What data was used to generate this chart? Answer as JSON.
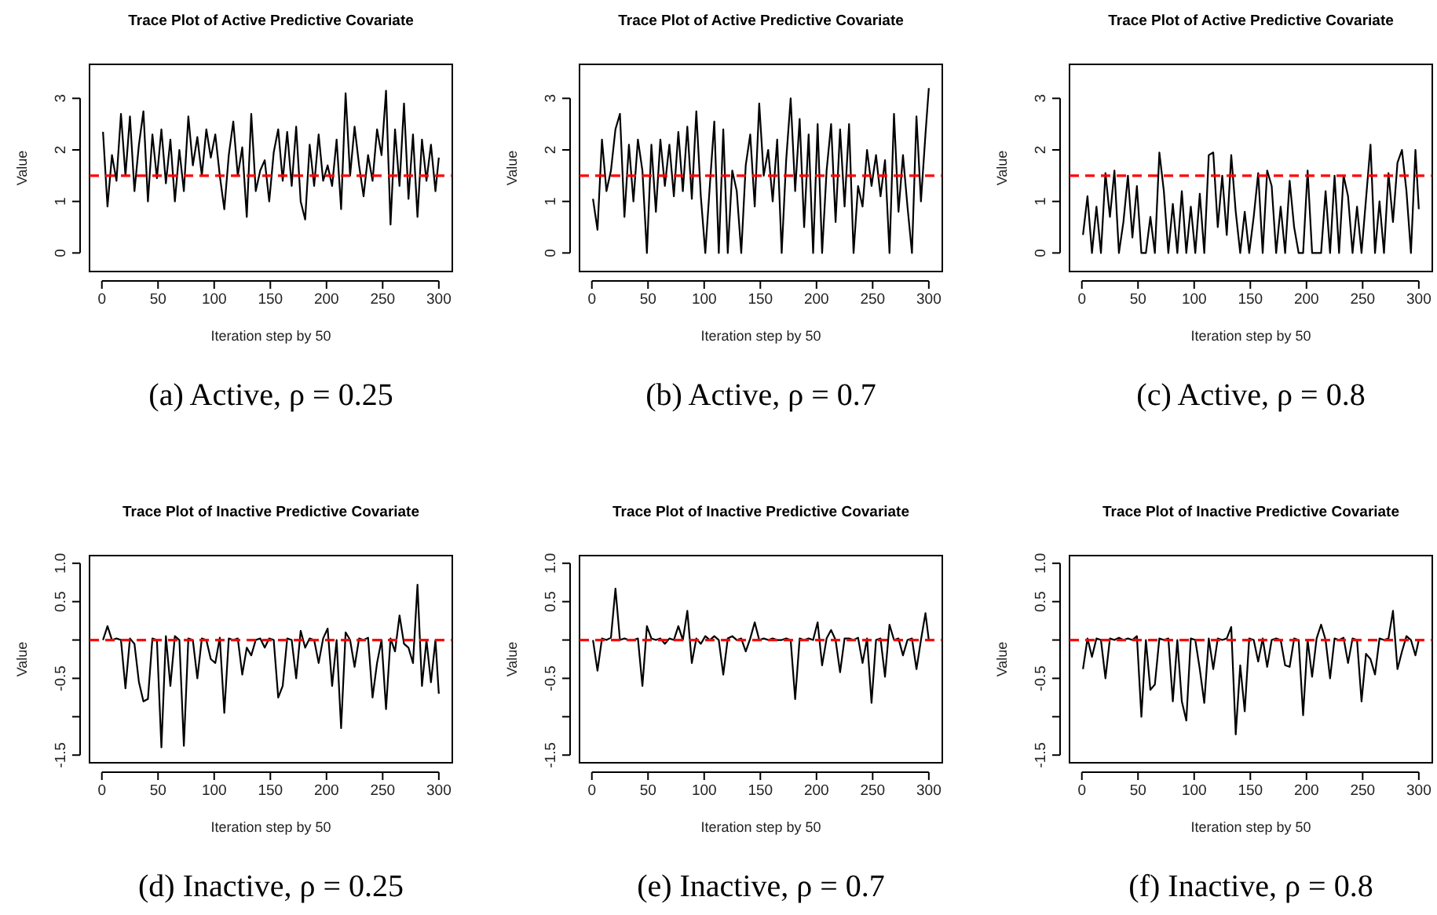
{
  "chart_data": [
    {
      "type": "line",
      "title": "Trace Plot of Active Predictive Covariate",
      "xlabel": "Iteration step by 50",
      "ylabel": "Value",
      "annotations": [
        "(a) Active, ρ = 0.25"
      ],
      "xlim": [
        -11,
        312
      ],
      "xticks": [
        0,
        50,
        100,
        150,
        200,
        250,
        300
      ],
      "ylim": [
        -0.36,
        3.66
      ],
      "yticks": [
        0,
        1,
        2,
        3
      ],
      "x": [
        1,
        5,
        9,
        13,
        17,
        21,
        25,
        29,
        33,
        37,
        41,
        45,
        49,
        53,
        57,
        61,
        65,
        69,
        73,
        77,
        81,
        85,
        89,
        93,
        97,
        101,
        105,
        109,
        113,
        117,
        121,
        125,
        129,
        133,
        137,
        141,
        145,
        149,
        153,
        157,
        161,
        165,
        169,
        173,
        177,
        181,
        185,
        189,
        193,
        197,
        201,
        205,
        209,
        213,
        217,
        221,
        225,
        229,
        233,
        237,
        241,
        245,
        249,
        253,
        257,
        261,
        265,
        269,
        273,
        277,
        281,
        285,
        289,
        293,
        297,
        300
      ],
      "ref_lines": [
        {
          "axis": "y",
          "value": 1.5,
          "color": "#ff0000",
          "line_style": "dashed"
        }
      ],
      "series": [
        {
          "color": "#000000",
          "values": [
            2.35,
            0.9,
            1.9,
            1.4,
            2.7,
            1.5,
            2.65,
            1.2,
            2.1,
            2.75,
            1.0,
            2.3,
            1.45,
            2.4,
            1.35,
            2.2,
            1.0,
            2.0,
            1.2,
            2.65,
            1.7,
            2.25,
            1.5,
            2.4,
            1.85,
            2.3,
            1.5,
            0.85,
            1.9,
            2.55,
            1.5,
            2.05,
            0.7,
            2.7,
            1.2,
            1.6,
            1.8,
            1.0,
            1.95,
            2.4,
            1.4,
            2.35,
            1.3,
            2.45,
            1.0,
            0.65,
            2.1,
            1.3,
            2.3,
            1.4,
            1.7,
            1.3,
            2.2,
            0.85,
            3.1,
            1.5,
            2.45,
            1.7,
            1.1,
            1.9,
            1.4,
            2.4,
            1.9,
            3.15,
            0.55,
            2.4,
            1.3,
            2.9,
            1.05,
            2.3,
            0.7,
            2.2,
            1.4,
            2.1,
            1.2,
            1.85
          ]
        }
      ]
    },
    {
      "type": "line",
      "title": "Trace Plot of Active Predictive Covariate",
      "xlabel": "Iteration step by 50",
      "ylabel": "Value",
      "annotations": [
        "(b) Active, ρ = 0.7"
      ],
      "xlim": [
        -11,
        312
      ],
      "xticks": [
        0,
        50,
        100,
        150,
        200,
        250,
        300
      ],
      "ylim": [
        -0.36,
        3.66
      ],
      "yticks": [
        0,
        1,
        2,
        3
      ],
      "x": [
        1,
        5,
        9,
        13,
        17,
        21,
        25,
        29,
        33,
        37,
        41,
        45,
        49,
        53,
        57,
        61,
        65,
        69,
        73,
        77,
        81,
        85,
        89,
        93,
        97,
        101,
        105,
        109,
        113,
        117,
        121,
        125,
        129,
        133,
        137,
        141,
        145,
        149,
        153,
        157,
        161,
        165,
        169,
        173,
        177,
        181,
        185,
        189,
        193,
        197,
        201,
        205,
        209,
        213,
        217,
        221,
        225,
        229,
        233,
        237,
        241,
        245,
        249,
        253,
        257,
        261,
        265,
        269,
        273,
        277,
        281,
        285,
        289,
        293,
        297,
        300
      ],
      "ref_lines": [
        {
          "axis": "y",
          "value": 1.5,
          "color": "#ff0000",
          "line_style": "dashed"
        }
      ],
      "series": [
        {
          "color": "#000000",
          "values": [
            1.05,
            0.45,
            2.2,
            1.2,
            1.6,
            2.4,
            2.7,
            0.7,
            2.1,
            1.0,
            2.2,
            1.6,
            0.0,
            2.1,
            0.8,
            2.2,
            1.3,
            2.1,
            1.1,
            2.35,
            1.2,
            2.45,
            1.05,
            2.75,
            1.1,
            0.0,
            1.3,
            2.55,
            0.0,
            2.4,
            0.0,
            1.6,
            1.2,
            0.0,
            1.7,
            2.3,
            0.9,
            2.9,
            1.5,
            2.0,
            1.0,
            2.2,
            0.0,
            1.8,
            3.0,
            1.2,
            2.6,
            0.5,
            2.3,
            0.0,
            2.5,
            0.0,
            1.6,
            2.5,
            0.6,
            2.4,
            0.9,
            2.5,
            0.0,
            1.3,
            0.9,
            2.0,
            1.3,
            1.9,
            1.1,
            1.8,
            0.0,
            2.7,
            0.8,
            1.9,
            0.9,
            0.0,
            2.65,
            1.0,
            2.3,
            3.2
          ]
        }
      ]
    },
    {
      "type": "line",
      "title": "Trace Plot of Active Predictive Covariate",
      "xlabel": "Iteration step by 50",
      "ylabel": "Value",
      "annotations": [
        "(c) Active, ρ = 0.8"
      ],
      "xlim": [
        -11,
        312
      ],
      "xticks": [
        0,
        50,
        100,
        150,
        200,
        250,
        300
      ],
      "ylim": [
        -0.36,
        3.66
      ],
      "yticks": [
        0,
        1,
        2,
        3
      ],
      "x": [
        1,
        5,
        9,
        13,
        17,
        21,
        25,
        29,
        33,
        37,
        41,
        45,
        49,
        53,
        57,
        61,
        65,
        69,
        73,
        77,
        81,
        85,
        89,
        93,
        97,
        101,
        105,
        109,
        113,
        117,
        121,
        125,
        129,
        133,
        137,
        141,
        145,
        149,
        153,
        157,
        161,
        165,
        169,
        173,
        177,
        181,
        185,
        189,
        193,
        197,
        201,
        205,
        209,
        213,
        217,
        221,
        225,
        229,
        233,
        237,
        241,
        245,
        249,
        253,
        257,
        261,
        265,
        269,
        273,
        277,
        281,
        285,
        289,
        293,
        297,
        300
      ],
      "ref_lines": [
        {
          "axis": "y",
          "value": 1.5,
          "color": "#ff0000",
          "line_style": "dashed"
        }
      ],
      "series": [
        {
          "color": "#000000",
          "values": [
            0.35,
            1.1,
            0.0,
            0.9,
            0.0,
            1.55,
            0.7,
            1.6,
            0.0,
            0.6,
            1.5,
            0.3,
            1.3,
            0.0,
            0.0,
            0.7,
            0.0,
            1.95,
            1.2,
            0.0,
            0.95,
            0.0,
            1.2,
            0.0,
            0.9,
            0.0,
            1.15,
            0.0,
            1.9,
            1.95,
            0.5,
            1.5,
            0.35,
            1.9,
            0.8,
            0.0,
            0.8,
            0.0,
            0.7,
            1.55,
            0.0,
            1.6,
            1.3,
            0.0,
            0.9,
            0.0,
            1.4,
            0.5,
            0.0,
            0.0,
            1.6,
            0.0,
            0.0,
            0.0,
            1.2,
            0.0,
            1.5,
            0.0,
            1.5,
            1.1,
            0.0,
            0.9,
            0.0,
            1.05,
            2.1,
            0.0,
            1.0,
            0.0,
            1.55,
            0.6,
            1.75,
            2.0,
            1.2,
            0.0,
            2.0,
            0.85
          ]
        }
      ]
    },
    {
      "type": "line",
      "title": "Trace Plot of Inactive Predictive Covariate",
      "xlabel": "Iteration step by 50",
      "ylabel": "Value",
      "annotations": [
        "(d) Inactive, ρ = 0.25"
      ],
      "xlim": [
        -11,
        312
      ],
      "xticks": [
        0,
        50,
        100,
        150,
        200,
        250,
        300
      ],
      "ylim": [
        -1.6,
        1.1
      ],
      "yticks": [
        -1.5,
        {
          "value": -1,
          "label": null
        },
        -0.5,
        {
          "value": 0,
          "label": null
        },
        0.5,
        {
          "value": 1,
          "label": "1.0"
        }
      ],
      "x": [
        1,
        5,
        9,
        13,
        17,
        21,
        25,
        29,
        33,
        37,
        41,
        45,
        49,
        53,
        57,
        61,
        65,
        69,
        73,
        77,
        81,
        85,
        89,
        93,
        97,
        101,
        105,
        109,
        113,
        117,
        121,
        125,
        129,
        133,
        137,
        141,
        145,
        149,
        153,
        157,
        161,
        165,
        169,
        173,
        177,
        181,
        185,
        189,
        193,
        197,
        201,
        205,
        209,
        213,
        217,
        221,
        225,
        229,
        233,
        237,
        241,
        245,
        249,
        253,
        257,
        261,
        265,
        269,
        273,
        277,
        281,
        285,
        289,
        293,
        297,
        300
      ],
      "ref_lines": [
        {
          "axis": "y",
          "value": 0,
          "color": "#ff0000",
          "line_style": "dashed"
        }
      ],
      "series": [
        {
          "color": "#000000",
          "values": [
            0.0,
            0.18,
            0.0,
            0.02,
            0.0,
            -0.63,
            0.02,
            -0.05,
            -0.55,
            -0.8,
            -0.77,
            0.02,
            0.0,
            -1.4,
            0.05,
            -0.6,
            0.05,
            0.0,
            -1.38,
            0.02,
            0.0,
            -0.5,
            0.02,
            0.0,
            -0.25,
            -0.3,
            0.03,
            -0.95,
            0.02,
            0.0,
            0.02,
            -0.45,
            -0.1,
            -0.2,
            0.0,
            0.02,
            -0.1,
            0.02,
            0.0,
            -0.75,
            -0.6,
            0.02,
            0.0,
            -0.5,
            0.12,
            -0.1,
            0.02,
            0.0,
            -0.3,
            0.02,
            0.15,
            -0.6,
            0.0,
            -1.15,
            0.1,
            0.0,
            -0.35,
            0.02,
            0.0,
            0.03,
            -0.75,
            -0.3,
            0.0,
            -0.9,
            0.02,
            -0.15,
            0.32,
            -0.05,
            -0.1,
            -0.3,
            0.72,
            -0.6,
            0.0,
            -0.55,
            0.0,
            -0.7
          ]
        }
      ]
    },
    {
      "type": "line",
      "title": "Trace Plot of Inactive Predictive Covariate",
      "xlabel": "Iteration step by 50",
      "ylabel": "Value",
      "annotations": [
        "(e) Inactive, ρ = 0.7"
      ],
      "xlim": [
        -11,
        312
      ],
      "xticks": [
        0,
        50,
        100,
        150,
        200,
        250,
        300
      ],
      "ylim": [
        -1.6,
        1.1
      ],
      "yticks": [
        -1.5,
        {
          "value": -1,
          "label": null
        },
        -0.5,
        {
          "value": 0,
          "label": null
        },
        0.5,
        {
          "value": 1,
          "label": "1.0"
        }
      ],
      "x": [
        1,
        5,
        9,
        13,
        17,
        21,
        25,
        29,
        33,
        37,
        41,
        45,
        49,
        53,
        57,
        61,
        65,
        69,
        73,
        77,
        81,
        85,
        89,
        93,
        97,
        101,
        105,
        109,
        113,
        117,
        121,
        125,
        129,
        133,
        137,
        141,
        145,
        149,
        153,
        157,
        161,
        165,
        169,
        173,
        177,
        181,
        185,
        189,
        193,
        197,
        201,
        205,
        209,
        213,
        217,
        221,
        225,
        229,
        233,
        237,
        241,
        245,
        249,
        253,
        257,
        261,
        265,
        269,
        273,
        277,
        281,
        285,
        289,
        293,
        297,
        300
      ],
      "ref_lines": [
        {
          "axis": "y",
          "value": 0,
          "color": "#ff0000",
          "line_style": "dashed"
        }
      ],
      "series": [
        {
          "color": "#000000",
          "values": [
            0.0,
            -0.4,
            0.02,
            0.0,
            0.03,
            0.67,
            0.0,
            0.02,
            0.0,
            0.0,
            0.02,
            -0.6,
            0.18,
            0.02,
            0.0,
            0.02,
            -0.05,
            0.02,
            0.0,
            0.18,
            0.0,
            0.38,
            -0.3,
            0.02,
            -0.05,
            0.05,
            0.0,
            0.05,
            0.0,
            -0.45,
            0.02,
            0.05,
            0.0,
            0.02,
            -0.15,
            0.02,
            0.23,
            0.0,
            0.02,
            0.0,
            0.02,
            0.0,
            0.0,
            0.02,
            0.0,
            -0.77,
            0.02,
            0.0,
            0.02,
            0.0,
            0.23,
            -0.33,
            0.02,
            0.13,
            0.0,
            -0.42,
            0.02,
            0.02,
            0.0,
            0.03,
            -0.3,
            0.02,
            -0.82,
            0.0,
            0.02,
            -0.48,
            0.2,
            0.0,
            0.02,
            -0.2,
            0.0,
            0.02,
            -0.38,
            0.0,
            0.35,
            0.0
          ]
        }
      ]
    },
    {
      "type": "line",
      "title": "Trace Plot of Inactive Predictive Covariate",
      "xlabel": "Iteration step by 50",
      "ylabel": "Value",
      "annotations": [
        "(f) Inactive, ρ = 0.8"
      ],
      "xlim": [
        -11,
        312
      ],
      "xticks": [
        0,
        50,
        100,
        150,
        200,
        250,
        300
      ],
      "ylim": [
        -1.6,
        1.1
      ],
      "yticks": [
        -1.5,
        {
          "value": -1,
          "label": null
        },
        -0.5,
        {
          "value": 0,
          "label": null
        },
        0.5,
        {
          "value": 1,
          "label": "1.0"
        }
      ],
      "x": [
        1,
        5,
        9,
        13,
        17,
        21,
        25,
        29,
        33,
        37,
        41,
        45,
        49,
        53,
        57,
        61,
        65,
        69,
        73,
        77,
        81,
        85,
        89,
        93,
        97,
        101,
        105,
        109,
        113,
        117,
        121,
        125,
        129,
        133,
        137,
        141,
        145,
        149,
        153,
        157,
        161,
        165,
        169,
        173,
        177,
        181,
        185,
        189,
        193,
        197,
        201,
        205,
        209,
        213,
        217,
        221,
        225,
        229,
        233,
        237,
        241,
        245,
        249,
        253,
        257,
        261,
        265,
        269,
        273,
        277,
        281,
        285,
        289,
        293,
        297,
        300
      ],
      "ref_lines": [
        {
          "axis": "y",
          "value": 0,
          "color": "#ff0000",
          "line_style": "dashed"
        }
      ],
      "series": [
        {
          "color": "#000000",
          "values": [
            -0.38,
            0.02,
            -0.22,
            0.02,
            0.0,
            -0.5,
            0.02,
            0.0,
            0.03,
            0.0,
            0.02,
            0.0,
            0.05,
            -1.0,
            0.0,
            -0.65,
            -0.58,
            0.02,
            0.0,
            0.02,
            -0.8,
            0.0,
            -0.8,
            -1.05,
            0.02,
            0.0,
            -0.38,
            -0.82,
            0.02,
            -0.38,
            0.02,
            0.0,
            0.02,
            0.17,
            -1.23,
            -0.33,
            -0.93,
            0.02,
            0.0,
            -0.28,
            0.02,
            -0.35,
            0.0,
            0.02,
            0.0,
            -0.33,
            -0.35,
            0.02,
            0.0,
            -0.98,
            0.0,
            -0.48,
            0.02,
            0.2,
            0.0,
            -0.5,
            0.02,
            0.0,
            0.03,
            -0.3,
            0.02,
            0.0,
            -0.8,
            -0.18,
            -0.25,
            -0.45,
            0.02,
            0.0,
            0.02,
            0.38,
            -0.38,
            -0.15,
            0.05,
            0.0,
            -0.2,
            0.0
          ]
        }
      ]
    }
  ]
}
